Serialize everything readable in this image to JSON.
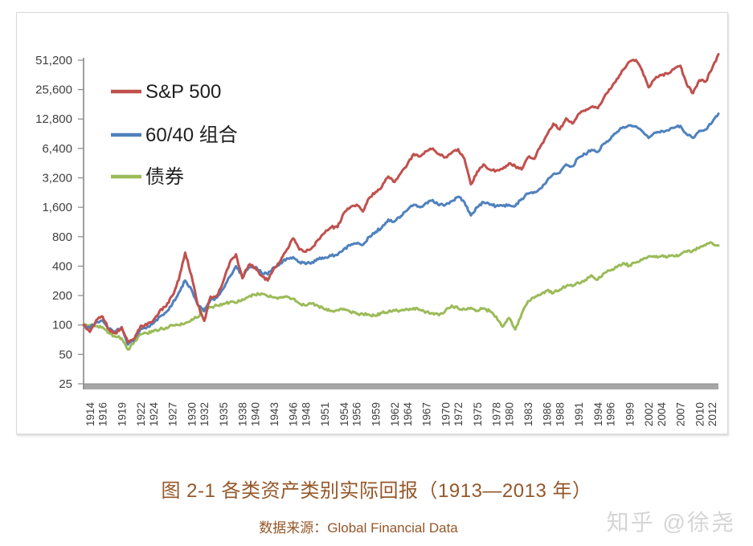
{
  "figure": {
    "caption": "图 2-1 各类资产类别实际回报（1913—2013 年）",
    "source": "数据来源：Global Financial Data",
    "watermark": "知乎 @徐尧",
    "caption_color": "#955729",
    "watermark_color": "#d5d5d5"
  },
  "chart_data": {
    "type": "line",
    "title": "",
    "xlabel": "",
    "ylabel": "",
    "y_scale": "log2",
    "ylim": [
      25,
      51200
    ],
    "x_range": [
      1913,
      2013
    ],
    "grid": false,
    "legend_position": "upper-left-inside",
    "legend_text_color": "#1f1f1f",
    "axis": {
      "line_color": "#898989",
      "bar_color": "#a6a6a6",
      "tick_label_color": "#404040"
    },
    "y_ticks": [
      {
        "value": 51200,
        "label": "51,200"
      },
      {
        "value": 25600,
        "label": "25,600"
      },
      {
        "value": 12800,
        "label": "12,800"
      },
      {
        "value": 6400,
        "label": "6,400"
      },
      {
        "value": 3200,
        "label": "3,200"
      },
      {
        "value": 1600,
        "label": "1,600"
      },
      {
        "value": 800,
        "label": "800"
      },
      {
        "value": 400,
        "label": "400"
      },
      {
        "value": 200,
        "label": "200"
      },
      {
        "value": 100,
        "label": "100"
      },
      {
        "value": 50,
        "label": "50"
      },
      {
        "value": 25,
        "label": "25"
      }
    ],
    "x_tick_labels": [
      1914,
      1916,
      1919,
      1922,
      1924,
      1927,
      1930,
      1932,
      1935,
      1938,
      1940,
      1943,
      1946,
      1948,
      1951,
      1954,
      1956,
      1959,
      1962,
      1964,
      1967,
      1970,
      1972,
      1975,
      1978,
      1980,
      1983,
      1986,
      1988,
      1991,
      1994,
      1996,
      1999,
      2002,
      2004,
      2007,
      2010,
      2012
    ],
    "x_years": [
      1913,
      1914,
      1915,
      1916,
      1917,
      1918,
      1919,
      1920,
      1921,
      1922,
      1923,
      1924,
      1925,
      1926,
      1927,
      1928,
      1929,
      1930,
      1931,
      1932,
      1933,
      1934,
      1935,
      1936,
      1937,
      1938,
      1939,
      1940,
      1941,
      1942,
      1943,
      1944,
      1945,
      1946,
      1947,
      1948,
      1949,
      1950,
      1951,
      1952,
      1953,
      1954,
      1955,
      1956,
      1957,
      1958,
      1959,
      1960,
      1961,
      1962,
      1963,
      1964,
      1965,
      1966,
      1967,
      1968,
      1969,
      1970,
      1971,
      1972,
      1973,
      1974,
      1975,
      1976,
      1977,
      1978,
      1979,
      1980,
      1981,
      1982,
      1983,
      1984,
      1985,
      1986,
      1987,
      1988,
      1989,
      1990,
      1991,
      1992,
      1993,
      1994,
      1995,
      1996,
      1997,
      1998,
      1999,
      2000,
      2001,
      2002,
      2003,
      2004,
      2005,
      2006,
      2007,
      2008,
      2009,
      2010,
      2011,
      2012,
      2013
    ],
    "series": [
      {
        "name": "S&P 500",
        "color": "#C0504D",
        "values": [
          100,
          85,
          112,
          122,
          90,
          82,
          95,
          66,
          72,
          98,
          100,
          112,
          140,
          155,
          200,
          290,
          550,
          320,
          160,
          110,
          195,
          200,
          280,
          430,
          530,
          300,
          410,
          390,
          320,
          285,
          380,
          450,
          590,
          770,
          590,
          560,
          620,
          750,
          880,
          1000,
          1000,
          1400,
          1600,
          1700,
          1450,
          2000,
          2300,
          2600,
          3300,
          2900,
          3600,
          4400,
          5600,
          5300,
          6000,
          6400,
          5600,
          5200,
          5800,
          6300,
          5000,
          2750,
          3700,
          4400,
          3900,
          3800,
          3950,
          4500,
          4200,
          3900,
          5200,
          5000,
          6800,
          8800,
          11500,
          10000,
          13000,
          11500,
          14500,
          15500,
          17000,
          16500,
          21500,
          26000,
          33000,
          41000,
          49500,
          51500,
          40000,
          27000,
          33000,
          36000,
          37000,
          41500,
          45000,
          29000,
          23500,
          32000,
          31000,
          42000,
          59000
        ]
      },
      {
        "name": "60/40 组合",
        "color": "#4F81BD",
        "values": [
          100,
          93,
          106,
          112,
          92,
          86,
          95,
          63,
          72,
          92,
          95,
          104,
          122,
          135,
          165,
          215,
          285,
          230,
          160,
          138,
          180,
          190,
          235,
          310,
          400,
          315,
          385,
          390,
          345,
          330,
          390,
          430,
          480,
          495,
          440,
          420,
          440,
          470,
          490,
          510,
          520,
          600,
          650,
          680,
          660,
          800,
          900,
          1000,
          1200,
          1150,
          1300,
          1500,
          1700,
          1600,
          1780,
          1900,
          1680,
          1700,
          1850,
          2050,
          1800,
          1320,
          1600,
          1800,
          1700,
          1650,
          1650,
          1700,
          1650,
          1950,
          2200,
          2300,
          2500,
          3000,
          3500,
          3600,
          4400,
          4200,
          5200,
          5600,
          6200,
          5900,
          7200,
          8000,
          9400,
          10600,
          11000,
          10800,
          9600,
          8200,
          9300,
          9700,
          9800,
          10400,
          10900,
          8900,
          8200,
          9700,
          10000,
          11800,
          14500
        ]
      },
      {
        "name": "债券",
        "color": "#9BBB59",
        "values": [
          100,
          99,
          97,
          95,
          83,
          76,
          73,
          56,
          68,
          80,
          82,
          86,
          90,
          94,
          99,
          100,
          104,
          114,
          120,
          148,
          152,
          158,
          165,
          170,
          168,
          183,
          195,
          203,
          210,
          196,
          192,
          191,
          196,
          186,
          166,
          158,
          166,
          156,
          144,
          139,
          142,
          146,
          136,
          130,
          129,
          127,
          124,
          133,
          136,
          140,
          141,
          144,
          149,
          143,
          136,
          132,
          126,
          140,
          158,
          148,
          145,
          150,
          140,
          148,
          138,
          122,
          96,
          118,
          90,
          130,
          175,
          190,
          205,
          225,
          213,
          230,
          248,
          250,
          268,
          288,
          322,
          292,
          340,
          360,
          390,
          430,
          405,
          435,
          465,
          505,
          495,
          505,
          498,
          505,
          525,
          560,
          580,
          615,
          655,
          690,
          650
        ]
      }
    ]
  }
}
